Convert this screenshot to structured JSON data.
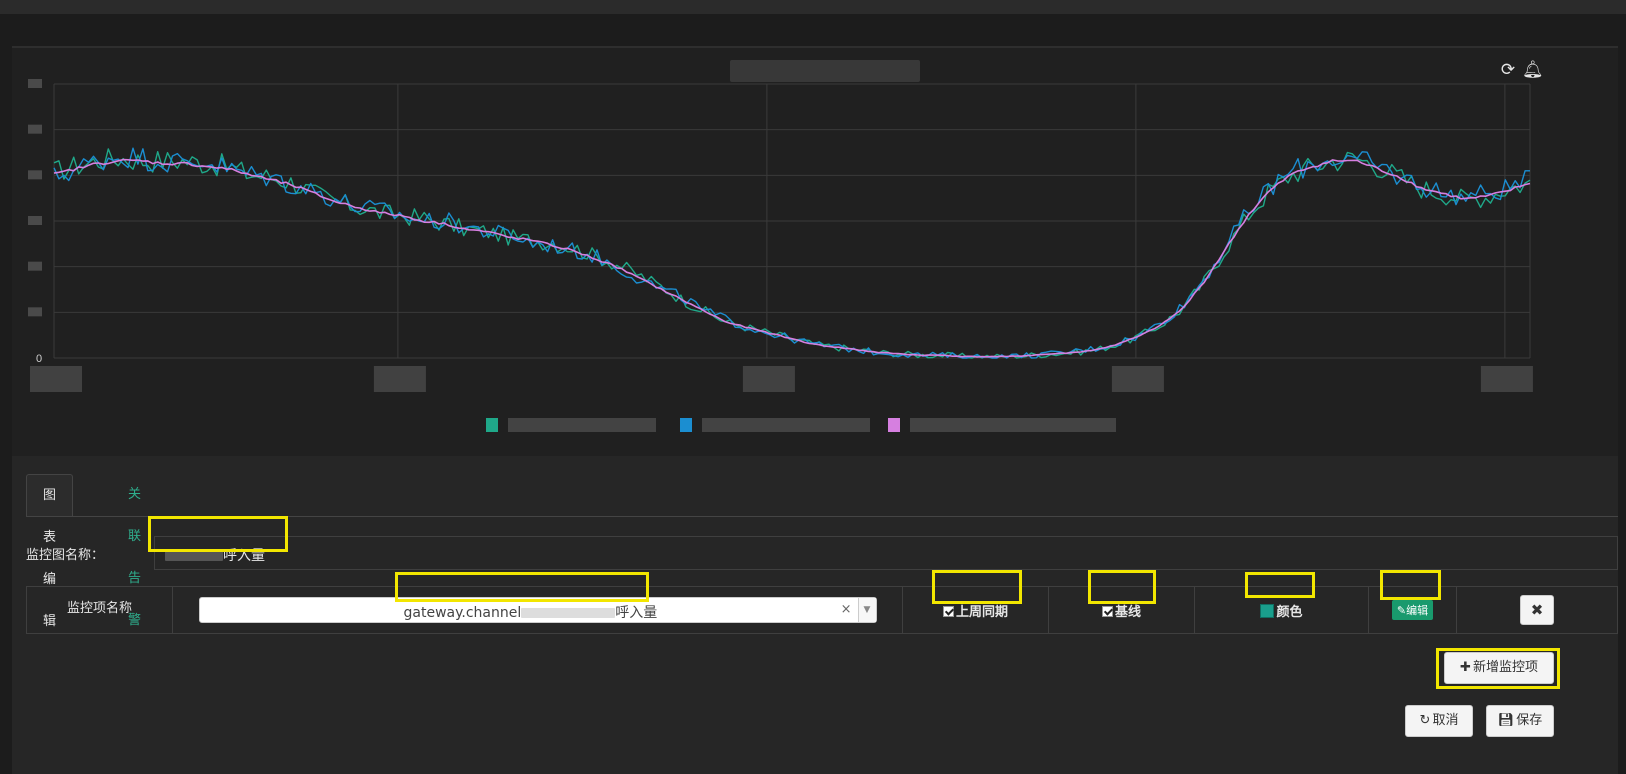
{
  "chart_panel": {
    "refresh_icon": "refresh-icon",
    "alarm_icon": "alarm-bell-icon"
  },
  "chart_data": {
    "type": "line",
    "y_tick_labels": [
      "0"
    ],
    "x_count": 300,
    "series": [
      {
        "color": "#1fa889",
        "values": [
          0.68,
          0.7,
          0.72,
          0.73,
          0.72,
          0.72,
          0.72,
          0.71,
          0.7,
          0.67,
          0.66,
          0.64,
          0.6,
          0.57,
          0.55,
          0.53,
          0.52,
          0.51,
          0.49,
          0.47,
          0.46,
          0.44,
          0.43,
          0.42,
          0.4,
          0.37,
          0.34,
          0.3,
          0.26,
          0.21,
          0.17,
          0.13,
          0.11,
          0.09,
          0.07,
          0.05,
          0.04,
          0.03,
          0.02,
          0.015,
          0.01,
          0.01,
          0.005,
          0.005,
          0.005,
          0.01,
          0.015,
          0.02,
          0.03,
          0.05,
          0.08,
          0.12,
          0.18,
          0.28,
          0.4,
          0.52,
          0.61,
          0.67,
          0.7,
          0.72,
          0.73,
          0.7,
          0.66,
          0.62,
          0.6,
          0.58,
          0.59,
          0.62,
          0.64
        ]
      },
      {
        "color": "#1b8ed1",
        "values": [
          0.66,
          0.69,
          0.72,
          0.74,
          0.73,
          0.72,
          0.71,
          0.72,
          0.69,
          0.67,
          0.66,
          0.63,
          0.61,
          0.58,
          0.55,
          0.54,
          0.52,
          0.5,
          0.5,
          0.48,
          0.46,
          0.45,
          0.42,
          0.41,
          0.39,
          0.37,
          0.33,
          0.29,
          0.25,
          0.22,
          0.17,
          0.14,
          0.11,
          0.09,
          0.07,
          0.05,
          0.04,
          0.03,
          0.02,
          0.015,
          0.01,
          0.01,
          0.005,
          0.005,
          0.005,
          0.01,
          0.015,
          0.025,
          0.035,
          0.055,
          0.08,
          0.13,
          0.19,
          0.29,
          0.41,
          0.53,
          0.62,
          0.68,
          0.71,
          0.73,
          0.72,
          0.7,
          0.66,
          0.63,
          0.6,
          0.59,
          0.6,
          0.62,
          0.65
        ]
      },
      {
        "color": "#d67fe0",
        "values": [
          0.67,
          0.69,
          0.71,
          0.72,
          0.72,
          0.71,
          0.71,
          0.7,
          0.69,
          0.67,
          0.65,
          0.63,
          0.6,
          0.57,
          0.55,
          0.53,
          0.52,
          0.5,
          0.49,
          0.47,
          0.46,
          0.44,
          0.43,
          0.41,
          0.39,
          0.36,
          0.33,
          0.29,
          0.25,
          0.21,
          0.17,
          0.13,
          0.11,
          0.09,
          0.07,
          0.05,
          0.04,
          0.03,
          0.02,
          0.015,
          0.01,
          0.01,
          0.005,
          0.005,
          0.005,
          0.01,
          0.015,
          0.02,
          0.03,
          0.05,
          0.08,
          0.12,
          0.18,
          0.28,
          0.4,
          0.52,
          0.61,
          0.67,
          0.7,
          0.72,
          0.72,
          0.69,
          0.66,
          0.62,
          0.6,
          0.58,
          0.59,
          0.61,
          0.64
        ]
      }
    ],
    "grid": true
  },
  "editor": {
    "tabs": [
      {
        "label": "图表编辑",
        "active": true
      },
      {
        "label": "关联告警",
        "active": false
      }
    ],
    "chart_name_label": "监控图名称：",
    "chart_name_value_suffix": "呼入量",
    "items": {
      "header_label": "监控项名称",
      "metric_prefix": "gateway.channel",
      "metric_suffix": "呼入量",
      "clear_glyph": "×",
      "dropdown_glyph": "▼",
      "last_week_label": "上周同期",
      "baseline_label": "基线",
      "color_label": "颜色",
      "color_value": "#1a9e8c",
      "edit_label": "编辑",
      "delete_glyph": "✖"
    },
    "add_item_label": "新增监控项",
    "cancel_label": "取消",
    "save_label": "保存"
  },
  "colors": {
    "accent_green": "#2fae8d",
    "highlight": "#f2e600"
  }
}
